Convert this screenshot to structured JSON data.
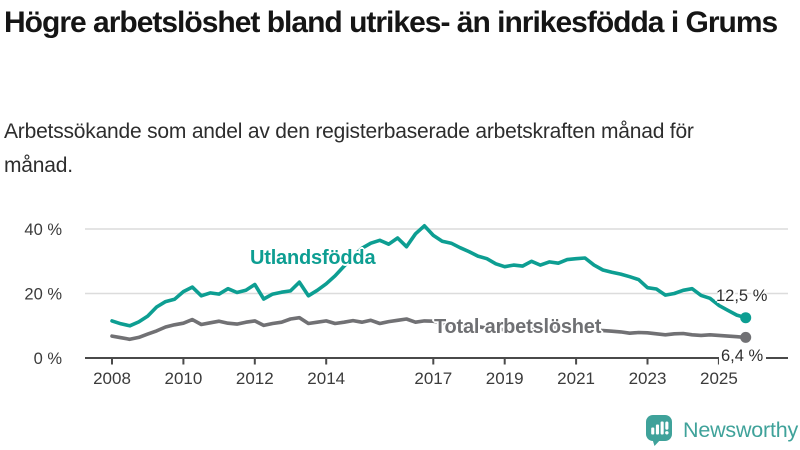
{
  "header": {
    "title": "Högre arbetslöshet bland utrikes- än inrikesfödda i Grums",
    "subtitle": "Arbetssökande som andel av den registerbaserade arbetskraften månad för månad."
  },
  "chart_data": {
    "type": "line",
    "title": "Högre arbetslöshet bland utrikes- än inrikesfödda i Grums",
    "subtitle": "Arbetssökande som andel av den registerbaserade arbetskraften månad för månad.",
    "unit": "%",
    "grid": "horizontal",
    "x_unit": "year",
    "x_start": 2008.0,
    "x_step_years": 0.25,
    "x_end": 2025.75,
    "xlim": [
      2007.7,
      2026.2
    ],
    "ylim": [
      0,
      43
    ],
    "xticks": [
      2008,
      2010,
      2012,
      2014,
      2017,
      2019,
      2021,
      2023,
      2025
    ],
    "yticks": [
      {
        "value": 40,
        "label": "40 %"
      },
      {
        "value": 20,
        "label": "20 %"
      },
      {
        "value": 0,
        "label": "0 %"
      }
    ],
    "series": [
      {
        "name": "Utlandsfödda",
        "color": "#0d9e92",
        "end_label": "12,5 %",
        "end_value": 12.5,
        "values": [
          11.5,
          10.6,
          10.0,
          11.2,
          13.0,
          15.8,
          17.5,
          18.2,
          20.6,
          22.0,
          19.3,
          20.2,
          19.8,
          21.5,
          20.3,
          21.0,
          22.8,
          18.3,
          19.8,
          20.4,
          20.8,
          23.5,
          19.3,
          21.0,
          23.0,
          25.5,
          28.5,
          31.5,
          34.0,
          35.6,
          36.5,
          35.3,
          37.2,
          34.5,
          38.5,
          41.0,
          38.0,
          36.2,
          35.6,
          34.2,
          33.0,
          31.6,
          30.8,
          29.2,
          28.3,
          28.8,
          28.5,
          30.0,
          28.8,
          29.8,
          29.4,
          30.5,
          30.8,
          31.0,
          28.8,
          27.3,
          26.6,
          26.0,
          25.2,
          24.3,
          21.8,
          21.4,
          19.5,
          20.0,
          21.0,
          21.5,
          19.4,
          18.5,
          16.3,
          14.8,
          13.3,
          12.5
        ]
      },
      {
        "name": "Total arbetslöshet",
        "color": "#717174",
        "end_label": "6,4 %",
        "end_value": 6.4,
        "values": [
          6.8,
          6.3,
          5.8,
          6.4,
          7.4,
          8.4,
          9.6,
          10.3,
          10.8,
          11.9,
          10.4,
          10.9,
          11.4,
          10.8,
          10.5,
          11.1,
          11.5,
          10.1,
          10.7,
          11.1,
          12.1,
          12.5,
          10.7,
          11.1,
          11.5,
          10.7,
          11.1,
          11.6,
          11.1,
          11.7,
          10.7,
          11.3,
          11.7,
          12.1,
          11.1,
          11.5,
          11.4,
          10.7,
          10.3,
          10.5,
          10.1,
          9.7,
          9.3,
          9.1,
          8.7,
          9.0,
          8.6,
          8.9,
          9.1,
          9.7,
          9.4,
          9.1,
          9.3,
          9.5,
          8.9,
          8.5,
          8.3,
          8.1,
          7.7,
          7.9,
          7.8,
          7.5,
          7.2,
          7.5,
          7.6,
          7.2,
          7.0,
          7.2,
          7.0,
          6.8,
          6.6,
          6.4
        ]
      }
    ]
  },
  "branding": {
    "logo_text": "Newsworthy",
    "logo_icon": "bar-chart-speech-bubble-icon",
    "logo_color": "#3fa29a"
  }
}
